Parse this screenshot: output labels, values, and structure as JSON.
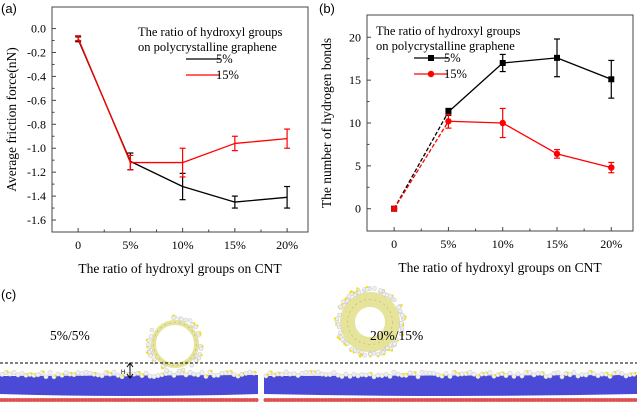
{
  "panel_labels": {
    "a": "(a)",
    "b": "(b)",
    "c": "(c)"
  },
  "chart_data": [
    {
      "type": "line",
      "panel": "(a)",
      "xlabel": "The ratio of hydroxyl groups on CNT",
      "ylabel": "Average friction force(nN)",
      "categories": [
        "0",
        "5%",
        "10%",
        "15%",
        "20%"
      ],
      "yticks": [
        0.0,
        -0.2,
        -0.4,
        -0.6,
        -0.8,
        -1.0,
        -1.2,
        -1.4,
        -1.6
      ],
      "ytick_labels": [
        "0.0",
        "-0.2",
        "-0.4",
        "-0.6",
        "-0.8",
        "-1.0",
        "-1.2",
        "-1.4",
        "-1.6"
      ],
      "ylim": [
        -1.7,
        0.18
      ],
      "legend_title": [
        "The ratio of hydroxyl groups",
        "on polycrystalline graphene"
      ],
      "legend_placement": "top-right",
      "series": [
        {
          "name": "5%",
          "color": "#000000",
          "marker": "none",
          "values": [
            -0.09,
            -1.11,
            -1.32,
            -1.45,
            -1.41
          ],
          "errors": [
            0.02,
            0.07,
            0.11,
            0.05,
            0.09
          ]
        },
        {
          "name": "15%",
          "color": "#ff0000",
          "marker": "none",
          "values": [
            -0.08,
            -1.12,
            -1.12,
            -0.96,
            -0.92
          ],
          "errors": [
            0.02,
            0.06,
            0.12,
            0.06,
            0.08
          ]
        }
      ]
    },
    {
      "type": "line",
      "panel": "(b)",
      "xlabel": "The ratio of hydroxyl groups on CNT",
      "ylabel": "The number of hydrogen bonds",
      "categories": [
        "0",
        "5%",
        "10%",
        "15%",
        "20%"
      ],
      "yticks": [
        0,
        5,
        10,
        15,
        20
      ],
      "ytick_labels": [
        "0",
        "5",
        "10",
        "15",
        "20"
      ],
      "ylim": [
        -2.6,
        22.6
      ],
      "legend_title": [
        "The ratio of hydroxyl groups",
        "on polycrystalline graphene"
      ],
      "legend_placement": "top-left",
      "dashed_first_segment": true,
      "series": [
        {
          "name": "5%",
          "color": "#000000",
          "marker": "square",
          "values": [
            0,
            11.3,
            17.0,
            17.6,
            15.1
          ],
          "errors": [
            0,
            0.4,
            1.0,
            2.2,
            2.2
          ]
        },
        {
          "name": "15%",
          "color": "#ff0000",
          "marker": "circle",
          "values": [
            0,
            10.2,
            10.0,
            6.4,
            4.8
          ],
          "errors": [
            0,
            0.8,
            1.7,
            0.5,
            0.6
          ]
        }
      ]
    }
  ],
  "panel_c": {
    "left_label": "5%/5%",
    "right_label": "20%/15%",
    "gap_label": "H",
    "colors": {
      "substrate": "#4a4ad6",
      "base": "#e05050",
      "cnt": "#e6e49a",
      "hydroxyl_o": "#f0f0f0",
      "hydroxyl_h": "#f5e000"
    }
  }
}
